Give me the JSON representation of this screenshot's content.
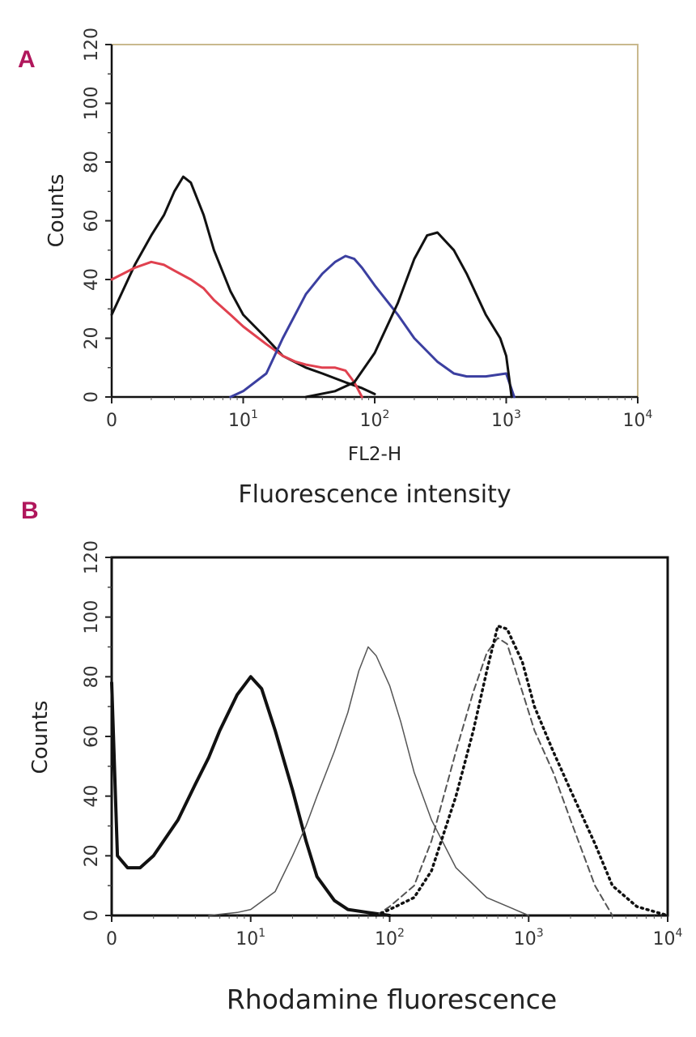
{
  "colors": {
    "panel_letter": "#b0175c",
    "black": "#111111",
    "red": "#e0414f",
    "blue": "#3b3fa0",
    "gray": "#555555"
  },
  "chart_data": [
    {
      "panel": "A",
      "type": "line",
      "x_scale": "log",
      "xlim": [
        1,
        10000
      ],
      "ylim": [
        0,
        120
      ],
      "y_ticks": [
        0,
        20,
        40,
        60,
        80,
        100,
        120
      ],
      "x_ticks": [
        {
          "base": "0",
          "exp": ""
        },
        {
          "base": "10",
          "exp": "1"
        },
        {
          "base": "10",
          "exp": "2"
        },
        {
          "base": "10",
          "exp": "3"
        },
        {
          "base": "10",
          "exp": "4"
        }
      ],
      "ylabel": "Counts",
      "xlabel": "FL2-H",
      "xlabel2": "Fluorescence intensity",
      "series": [
        {
          "name": "black-low",
          "color": "black",
          "x": [
            1,
            1.5,
            2,
            2.5,
            3,
            3.5,
            4,
            5,
            6,
            8,
            10,
            15,
            20,
            30,
            40,
            60,
            80,
            100
          ],
          "y": [
            28,
            45,
            55,
            62,
            70,
            75,
            73,
            62,
            50,
            36,
            28,
            20,
            14,
            10,
            8,
            5,
            3,
            1
          ]
        },
        {
          "name": "red",
          "color": "red",
          "x": [
            1,
            1.5,
            2,
            2.5,
            3,
            4,
            5,
            6,
            8,
            10,
            15,
            20,
            25,
            30,
            40,
            50,
            60,
            70,
            80
          ],
          "y": [
            40,
            44,
            46,
            45,
            43,
            40,
            37,
            33,
            28,
            24,
            18,
            14,
            12,
            11,
            10,
            10,
            9,
            5,
            0
          ]
        },
        {
          "name": "blue",
          "color": "blue",
          "x": [
            8,
            10,
            15,
            20,
            30,
            40,
            50,
            60,
            70,
            80,
            100,
            150,
            200,
            300,
            400,
            500,
            700,
            1000,
            1150
          ],
          "y": [
            0,
            2,
            8,
            20,
            35,
            42,
            46,
            48,
            47,
            44,
            38,
            28,
            20,
            12,
            8,
            7,
            7,
            8,
            0
          ]
        },
        {
          "name": "black-high",
          "color": "black",
          "x": [
            30,
            50,
            70,
            100,
            150,
            200,
            250,
            300,
            400,
            500,
            700,
            900,
            1000,
            1100
          ],
          "y": [
            0,
            2,
            5,
            15,
            32,
            47,
            55,
            56,
            50,
            42,
            28,
            20,
            14,
            0
          ]
        }
      ]
    },
    {
      "panel": "B",
      "type": "line",
      "x_scale": "log",
      "xlim": [
        1,
        10000
      ],
      "ylim": [
        0,
        120
      ],
      "y_ticks": [
        0,
        20,
        40,
        60,
        80,
        100,
        120
      ],
      "x_ticks": [
        {
          "base": "0",
          "exp": ""
        },
        {
          "base": "10",
          "exp": "1"
        },
        {
          "base": "10",
          "exp": "2"
        },
        {
          "base": "10",
          "exp": "3"
        },
        {
          "base": "10",
          "exp": "4"
        }
      ],
      "ylabel": "Counts",
      "xlabel": "Rhodamine fluorescence",
      "series": [
        {
          "name": "thick-solid",
          "color": "black",
          "style": "thick",
          "x": [
            1,
            1.1,
            1.3,
            1.6,
            2,
            3,
            4,
            5,
            6,
            8,
            10,
            12,
            15,
            20,
            25,
            30,
            40,
            50,
            70,
            100
          ],
          "y": [
            78,
            20,
            16,
            16,
            20,
            32,
            44,
            53,
            62,
            74,
            80,
            76,
            62,
            42,
            25,
            13,
            5,
            2,
            1,
            0
          ]
        },
        {
          "name": "thin-solid",
          "color": "gray",
          "style": "thin",
          "x": [
            5,
            8,
            10,
            15,
            20,
            25,
            30,
            40,
            50,
            60,
            70,
            80,
            100,
            120,
            150,
            200,
            300,
            500,
            1000
          ],
          "y": [
            0,
            1,
            2,
            8,
            20,
            30,
            40,
            55,
            68,
            82,
            90,
            87,
            77,
            65,
            48,
            32,
            16,
            6,
            0
          ]
        },
        {
          "name": "dashed",
          "color": "gray",
          "style": "dashed",
          "x": [
            80,
            100,
            150,
            200,
            300,
            400,
            500,
            600,
            700,
            900,
            1100,
            1500,
            2000,
            3000,
            4000
          ],
          "y": [
            0,
            3,
            10,
            25,
            55,
            75,
            88,
            93,
            91,
            75,
            62,
            48,
            32,
            10,
            0
          ]
        },
        {
          "name": "dotted",
          "color": "black",
          "style": "dotted",
          "x": [
            80,
            100,
            150,
            200,
            300,
            400,
            500,
            600,
            700,
            900,
            1100,
            1500,
            2000,
            3000,
            4000,
            6000,
            10000
          ],
          "y": [
            0,
            2,
            6,
            15,
            40,
            62,
            82,
            97,
            96,
            85,
            70,
            55,
            42,
            24,
            10,
            3,
            0
          ]
        }
      ]
    }
  ]
}
